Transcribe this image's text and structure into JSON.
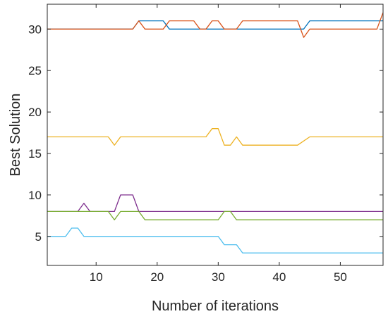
{
  "chart_data": {
    "type": "line",
    "title": "",
    "xlabel": "Number of iterations",
    "ylabel": "Best Solution",
    "xlim": [
      2,
      57
    ],
    "ylim": [
      1.5,
      33
    ],
    "xticks": [
      10,
      20,
      30,
      40,
      50
    ],
    "yticks": [
      5,
      10,
      15,
      20,
      25,
      30
    ],
    "grid": false,
    "legend": "none",
    "series": [
      {
        "color": "#0072BD",
        "points": [
          [
            2,
            30
          ],
          [
            16,
            30
          ],
          [
            17,
            31
          ],
          [
            21,
            31
          ],
          [
            22,
            30
          ],
          [
            44,
            30
          ],
          [
            45,
            31
          ],
          [
            57,
            31
          ]
        ]
      },
      {
        "color": "#D95319",
        "points": [
          [
            2,
            30
          ],
          [
            16,
            30
          ],
          [
            17,
            31
          ],
          [
            18,
            30
          ],
          [
            21,
            30
          ],
          [
            22,
            31
          ],
          [
            26,
            31
          ],
          [
            27,
            30
          ],
          [
            28,
            30
          ],
          [
            29,
            31
          ],
          [
            30,
            31
          ],
          [
            31,
            30
          ],
          [
            33,
            30
          ],
          [
            34,
            31
          ],
          [
            43,
            31
          ],
          [
            44,
            29
          ],
          [
            45,
            30
          ],
          [
            56,
            30
          ],
          [
            57,
            32
          ]
        ]
      },
      {
        "color": "#EDB120",
        "points": [
          [
            2,
            17
          ],
          [
            12,
            17
          ],
          [
            13,
            16
          ],
          [
            14,
            17
          ],
          [
            28,
            17
          ],
          [
            29,
            18
          ],
          [
            30,
            18
          ],
          [
            31,
            16
          ],
          [
            32,
            16
          ],
          [
            33,
            17
          ],
          [
            34,
            16
          ],
          [
            43,
            16
          ],
          [
            45,
            17
          ],
          [
            57,
            17
          ]
        ]
      },
      {
        "color": "#7E2F8E",
        "points": [
          [
            2,
            8
          ],
          [
            7,
            8
          ],
          [
            8,
            9
          ],
          [
            9,
            8
          ],
          [
            13,
            8
          ],
          [
            14,
            10
          ],
          [
            16,
            10
          ],
          [
            17,
            8
          ],
          [
            57,
            8
          ]
        ]
      },
      {
        "color": "#77AC30",
        "points": [
          [
            2,
            8
          ],
          [
            12,
            8
          ],
          [
            13,
            7
          ],
          [
            14,
            8
          ],
          [
            17,
            8
          ],
          [
            18,
            7
          ],
          [
            30,
            7
          ],
          [
            31,
            8
          ],
          [
            32,
            8
          ],
          [
            33,
            7
          ],
          [
            57,
            7
          ]
        ]
      },
      {
        "color": "#4DBEEE",
        "points": [
          [
            2,
            5
          ],
          [
            5,
            5
          ],
          [
            6,
            6
          ],
          [
            7,
            6
          ],
          [
            8,
            5
          ],
          [
            30,
            5
          ],
          [
            31,
            4
          ],
          [
            33,
            4
          ],
          [
            34,
            3
          ],
          [
            57,
            3
          ]
        ]
      }
    ]
  }
}
